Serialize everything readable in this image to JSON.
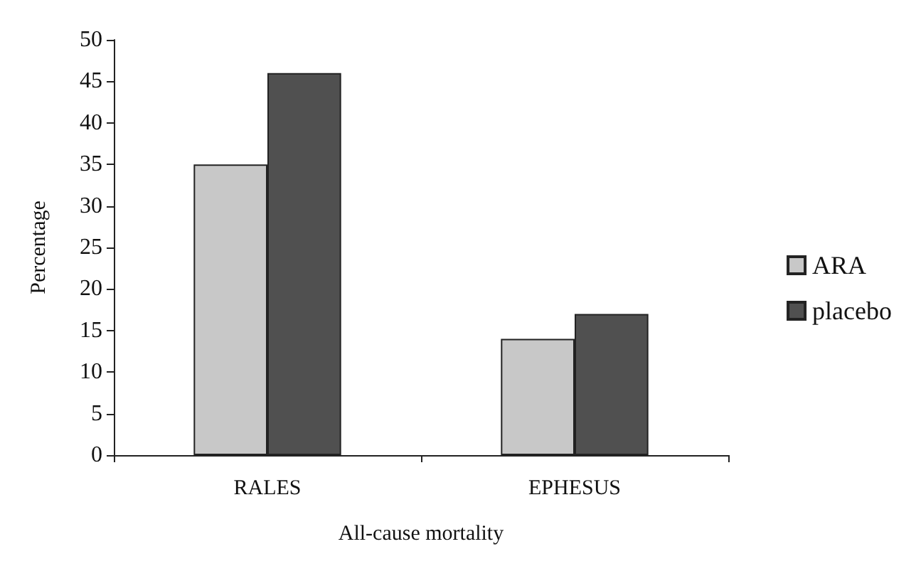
{
  "chart_data": {
    "type": "bar",
    "categories": [
      "RALES",
      "EPHESUS"
    ],
    "series": [
      {
        "name": "ARA",
        "color": "#c8c8c8",
        "values": [
          35,
          14
        ]
      },
      {
        "name": "placebo",
        "color": "#505050",
        "values": [
          46,
          17
        ]
      }
    ],
    "xlabel": "All-cause mortality",
    "ylabel": "Percentage",
    "ylim": [
      0,
      50
    ],
    "yticks": [
      0,
      5,
      10,
      15,
      20,
      25,
      30,
      35,
      40,
      45,
      50
    ],
    "grid": false,
    "legend": "right"
  }
}
